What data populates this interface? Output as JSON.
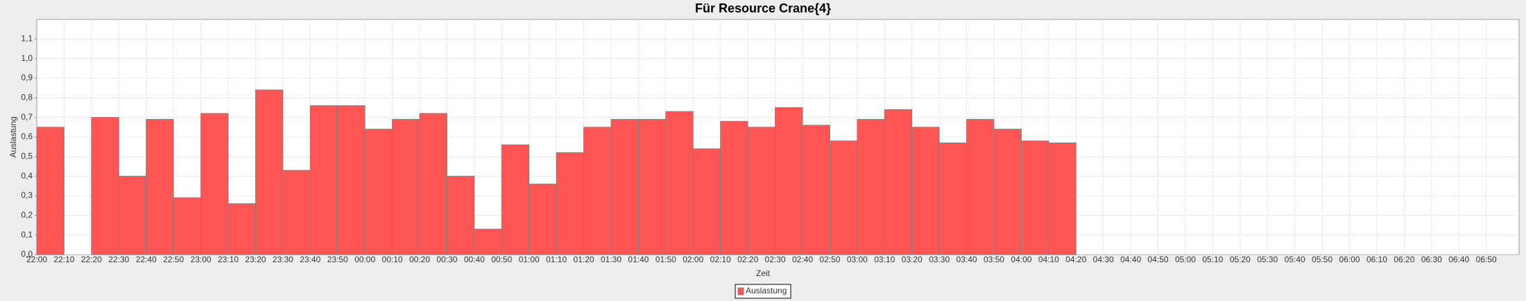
{
  "chart_data": {
    "type": "bar",
    "title": "Für Resource Crane{4}",
    "x_label": "Zeit",
    "y_label": "Auslastung",
    "categories": [
      "22:00",
      "22:10",
      "22:20",
      "22:30",
      "22:40",
      "22:50",
      "23:00",
      "23:10",
      "23:20",
      "23:30",
      "23:40",
      "23:50",
      "00:00",
      "00:10",
      "00:20",
      "00:30",
      "00:40",
      "00:50",
      "01:00",
      "01:10",
      "01:20",
      "01:30",
      "01:40",
      "01:50",
      "02:00",
      "02:10",
      "02:20",
      "02:30",
      "02:40",
      "02:50",
      "03:00",
      "03:10",
      "03:20",
      "03:30",
      "03:40",
      "03:50",
      "04:00",
      "04:10",
      "04:20",
      "04:30",
      "04:40",
      "04:50",
      "05:00",
      "05:10",
      "05:20",
      "05:30",
      "05:40",
      "05:50",
      "06:00",
      "06:10",
      "06:20",
      "06:30",
      "06:40",
      "06:50"
    ],
    "series": [
      {
        "name": "Auslastung",
        "color": "#ff5555",
        "values": [
          0.65,
          null,
          0.7,
          0.4,
          0.69,
          0.29,
          0.72,
          0.26,
          0.84,
          0.43,
          0.76,
          0.76,
          0.64,
          0.69,
          0.72,
          0.4,
          0.13,
          0.56,
          0.36,
          0.52,
          0.65,
          0.69,
          0.69,
          0.73,
          0.54,
          0.68,
          0.65,
          0.75,
          0.66,
          0.58,
          0.69,
          0.74,
          0.65,
          0.57,
          0.69,
          0.64,
          0.58,
          0.57,
          null,
          null,
          null,
          null,
          null,
          null,
          null,
          null,
          null,
          null,
          null,
          null,
          null,
          null,
          null,
          null
        ]
      }
    ],
    "ylim": [
      0,
      1.2
    ],
    "yticks": [
      {
        "value": 0,
        "label": "0,0"
      },
      {
        "value": 0.1,
        "label": "0,1"
      },
      {
        "value": 0.2,
        "label": "0,2"
      },
      {
        "value": 0.3,
        "label": "0,3"
      },
      {
        "value": 0.4,
        "label": "0,4"
      },
      {
        "value": 0.5,
        "label": "0,5"
      },
      {
        "value": 0.6,
        "label": "0,6"
      },
      {
        "value": 0.7,
        "label": "0,7"
      },
      {
        "value": 0.8,
        "label": "0,8"
      },
      {
        "value": 0.9,
        "label": "0,9"
      },
      {
        "value": 1.0,
        "label": "1,0"
      },
      {
        "value": 1.1,
        "label": "1,1"
      }
    ],
    "grid": true,
    "legend": "bottom"
  }
}
